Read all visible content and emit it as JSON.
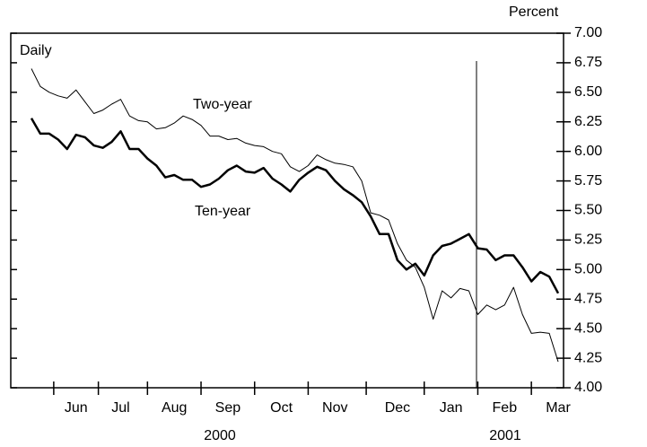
{
  "chart_data": {
    "type": "line",
    "y_axis_label": "Percent",
    "frequency_label": "Daily",
    "year_labels": [
      "2000",
      "2001"
    ],
    "categories": [
      null,
      null,
      null,
      null,
      null,
      "Jun",
      null,
      null,
      null,
      null,
      "Jul",
      null,
      null,
      null,
      null,
      null,
      "Aug",
      null,
      null,
      null,
      null,
      null,
      "Sep",
      null,
      null,
      null,
      null,
      null,
      "Oct",
      null,
      null,
      null,
      null,
      null,
      "Nov",
      null,
      null,
      null,
      null,
      null,
      null,
      "Dec",
      null,
      null,
      null,
      null,
      null,
      "Jan",
      null,
      null,
      null,
      null,
      null,
      "Feb",
      null,
      null,
      null,
      null,
      null,
      "Mar"
    ],
    "series": [
      {
        "name": "Two-year",
        "color": "#000000",
        "width": 1,
        "values": [
          6.7,
          6.55,
          6.5,
          6.47,
          6.45,
          6.52,
          6.42,
          6.32,
          6.35,
          6.4,
          6.44,
          6.3,
          6.26,
          6.25,
          6.19,
          6.2,
          6.24,
          6.3,
          6.27,
          6.22,
          6.13,
          6.13,
          6.1,
          6.11,
          6.07,
          6.05,
          6.04,
          6.0,
          5.98,
          5.87,
          5.83,
          5.88,
          5.97,
          5.93,
          5.9,
          5.89,
          5.87,
          5.75,
          5.48,
          5.46,
          5.42,
          5.22,
          5.08,
          5.02,
          4.85,
          4.58,
          4.82,
          4.76,
          4.84,
          4.82,
          4.62,
          4.7,
          4.66,
          4.7,
          4.85,
          4.62,
          4.46,
          4.47,
          4.46,
          4.22
        ]
      },
      {
        "name": "Ten-year",
        "color": "#000000",
        "width": 2.5,
        "values": [
          6.28,
          6.15,
          6.15,
          6.1,
          6.02,
          6.14,
          6.12,
          6.05,
          6.03,
          6.08,
          6.17,
          6.02,
          6.02,
          5.94,
          5.88,
          5.78,
          5.8,
          5.76,
          5.76,
          5.7,
          5.72,
          5.77,
          5.84,
          5.88,
          5.83,
          5.82,
          5.86,
          5.77,
          5.72,
          5.66,
          5.76,
          5.82,
          5.87,
          5.84,
          5.75,
          5.68,
          5.63,
          5.57,
          5.45,
          5.3,
          5.3,
          5.08,
          5.0,
          5.05,
          4.95,
          5.12,
          5.2,
          5.22,
          5.26,
          5.3,
          5.18,
          5.17,
          5.08,
          5.12,
          5.12,
          5.02,
          4.9,
          4.98,
          4.94,
          4.8
        ]
      }
    ],
    "ylim": [
      4,
      7
    ],
    "yticks": [
      {
        "value": 4,
        "label": "4.00"
      },
      {
        "value": 4.25,
        "label": "4.25"
      },
      {
        "value": 4.5,
        "label": "4.50"
      },
      {
        "value": 4.75,
        "label": "4.75"
      },
      {
        "value": 5,
        "label": "5.00"
      },
      {
        "value": 5.25,
        "label": "5.25"
      },
      {
        "value": 5.5,
        "label": "5.50"
      },
      {
        "value": 5.75,
        "label": "5.75"
      },
      {
        "value": 6,
        "label": "6.00"
      },
      {
        "value": 6.25,
        "label": "6.25"
      },
      {
        "value": 6.5,
        "label": "6.50"
      },
      {
        "value": 6.75,
        "label": "6.75"
      },
      {
        "value": 7,
        "label": "7.00"
      }
    ],
    "y_axis_side": "right",
    "grid": false
  }
}
